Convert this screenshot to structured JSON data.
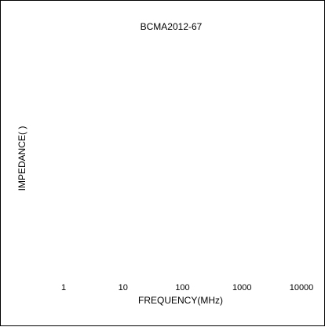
{
  "chart_data": {
    "type": "line",
    "title": "BCMA2012-67",
    "xlabel": "FREQUENCY(MHz)",
    "ylabel": "IMPEDANCE(  )",
    "x_scale": "log",
    "x_ticks": [
      "1",
      "10",
      "100",
      "1000",
      "10000"
    ],
    "x_tick_values": [
      1,
      10,
      100,
      1000,
      10000
    ],
    "xlim": [
      1,
      10000
    ],
    "series": [],
    "grid": false,
    "legend": "none",
    "colors": {
      "frame": "#000000",
      "text": "#000000",
      "background": "#ffffff"
    }
  }
}
